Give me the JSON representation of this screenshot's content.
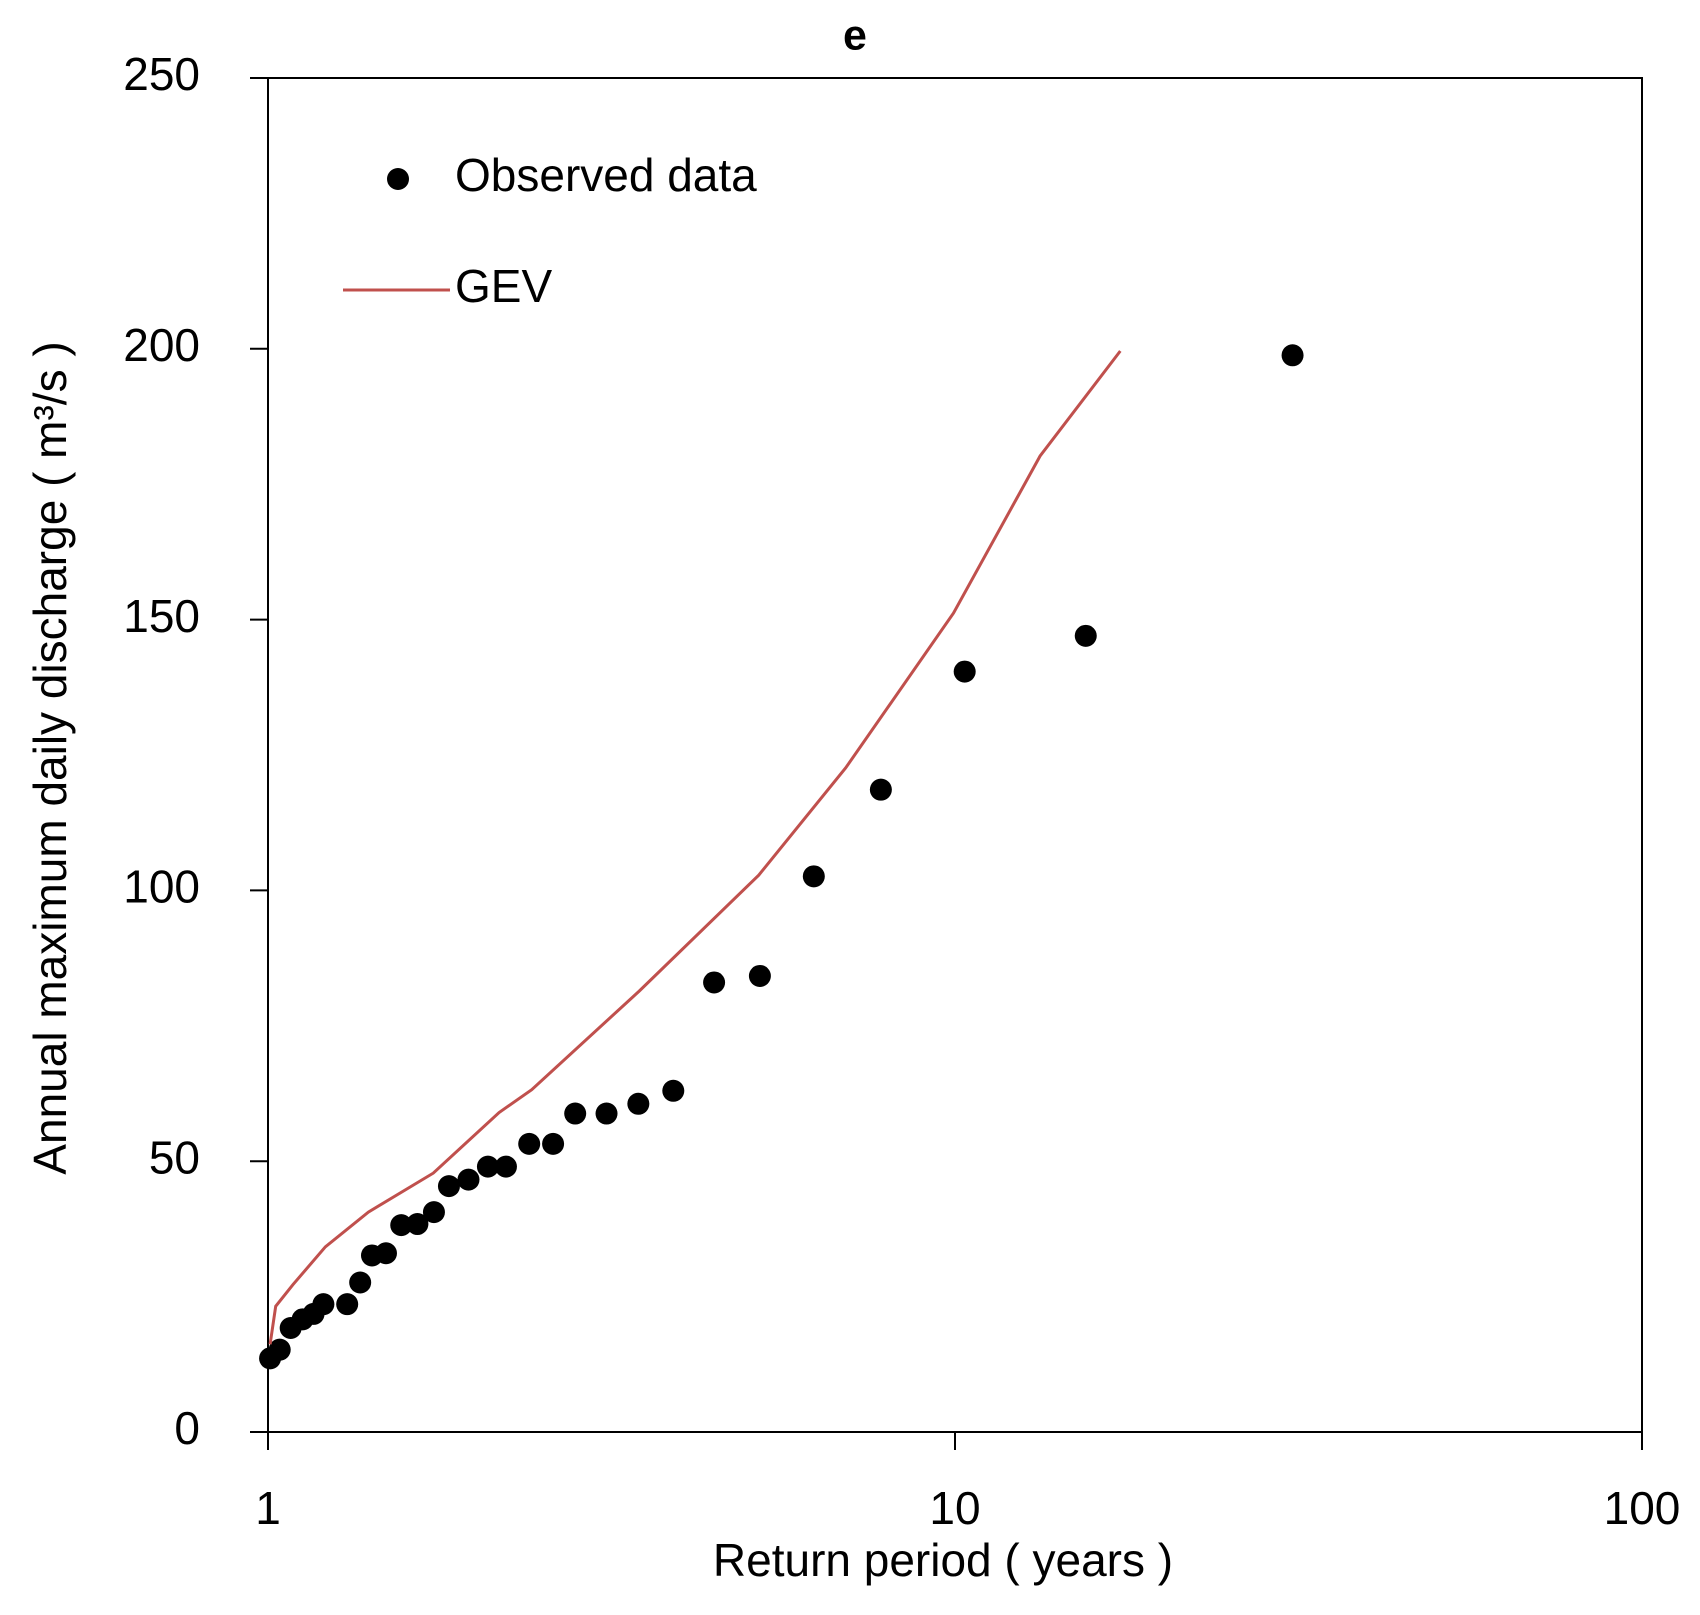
{
  "chart_data": {
    "type": "scatter",
    "title": "e",
    "x_label": "Return period ( years )",
    "y_label": "Annual maximum daily discharge ( m³/s )",
    "xscale": "log",
    "xlim": [
      1,
      100
    ],
    "xticks": [
      1,
      10,
      100
    ],
    "ylim": [
      0,
      250
    ],
    "yticks": [
      0,
      50,
      100,
      150,
      200,
      250
    ],
    "grid": false,
    "legend": "upper left",
    "series": [
      {
        "name": "Observed data",
        "type": "scatter",
        "color": "#000000",
        "x": [
          1.007,
          1.04,
          1.079,
          1.123,
          1.165,
          1.204,
          1.304,
          1.362,
          1.417,
          1.485,
          1.563,
          1.65,
          1.744,
          1.834,
          1.958,
          2.09,
          2.22,
          2.4,
          2.6,
          2.8,
          3.11,
          3.46,
          3.89,
          4.46,
          5.2,
          6.23,
          7.8,
          10.33,
          15.5,
          31
        ],
        "values": [
          13.6,
          15.2,
          19.2,
          20.8,
          21.8,
          23.6,
          23.6,
          27.6,
          32.6,
          33,
          38.2,
          38.4,
          40.6,
          45.4,
          46.6,
          49,
          49,
          53.2,
          53.2,
          58.8,
          58.8,
          60.6,
          63,
          83,
          84.2,
          102.6,
          118.6,
          140.4,
          147,
          198.8
        ]
      },
      {
        "name": "GEV",
        "type": "line",
        "color": "#c0504d",
        "x": [
          1.007,
          1.026,
          1.087,
          1.212,
          1.4,
          1.74,
          2.17,
          2.42,
          3.47,
          5.18,
          6.93,
          9.95,
          13.3,
          17.4
        ],
        "values": [
          16.2,
          23.2,
          27.2,
          34.2,
          40.6,
          47.8,
          59,
          63.2,
          81.4,
          102.8,
          122.6,
          151.2,
          180.2,
          199.6
        ]
      }
    ]
  }
}
